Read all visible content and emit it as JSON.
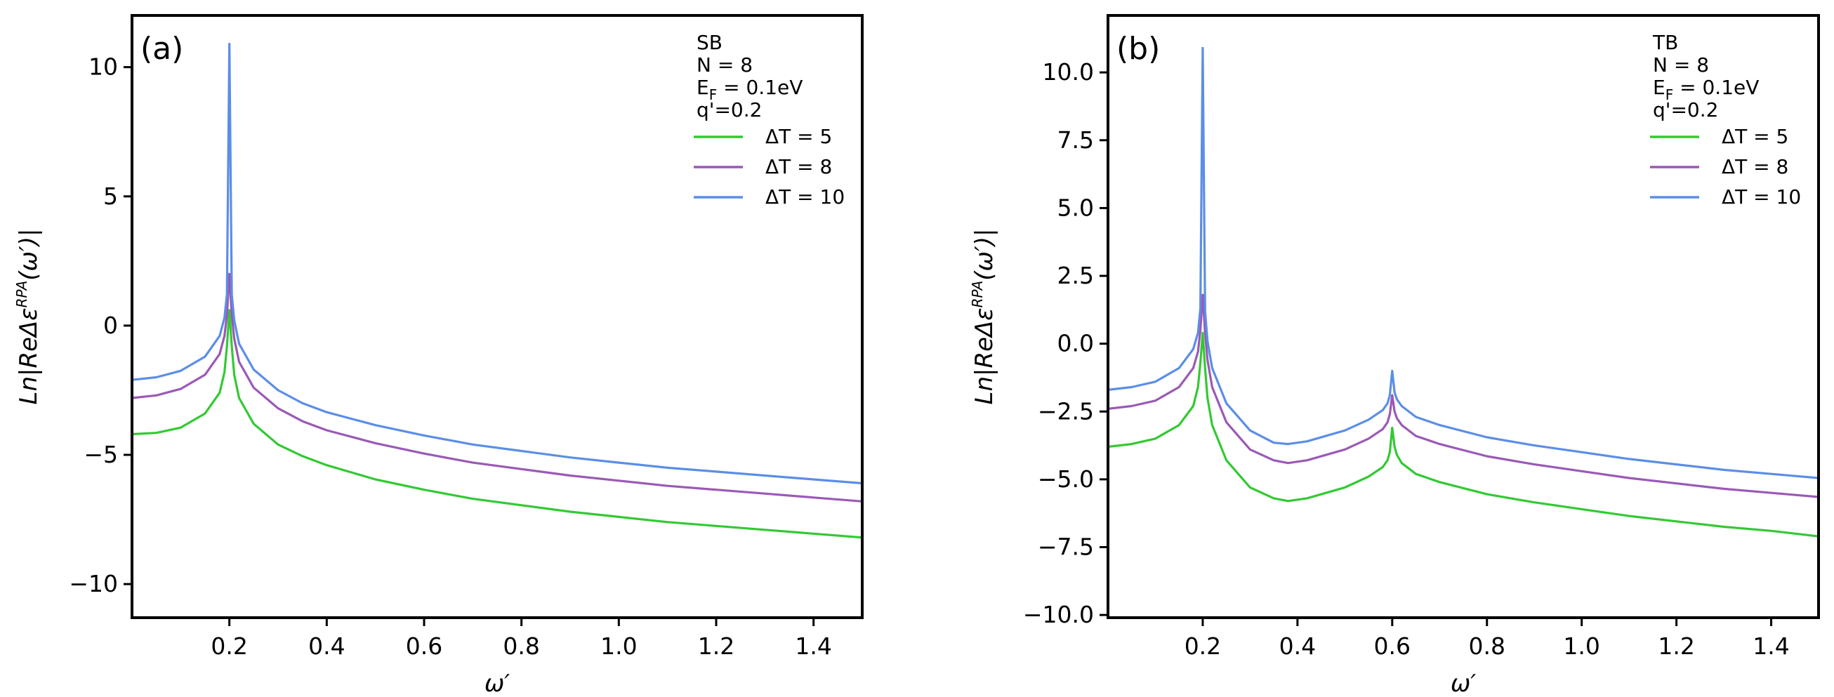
{
  "chart_data": [
    {
      "type": "line",
      "panel_label": "(a)",
      "xlabel": "ω′",
      "ylabel": "Ln|ReΔε^RPA(ω′)|",
      "xlim": [
        0.0,
        1.5
      ],
      "ylim": [
        -11.3,
        12
      ],
      "xticks": [
        0.2,
        0.4,
        0.6,
        0.8,
        1.0,
        1.2,
        1.4
      ],
      "xtick_labels": [
        "0.2",
        "0.4",
        "0.6",
        "0.8",
        "1.0",
        "1.2",
        "1.4"
      ],
      "yticks": [
        -10,
        -5,
        0,
        5,
        10
      ],
      "ytick_labels": [
        "−10",
        "−5",
        "0",
        "5",
        "10"
      ],
      "legend_title": [
        "SB",
        "N = 8",
        "E_F = 0.1eV",
        "q'=0.2"
      ],
      "legend_position": "top-right",
      "series": [
        {
          "name": "ΔT = 5",
          "color": "#33c933",
          "x": [
            0.0,
            0.05,
            0.1,
            0.15,
            0.18,
            0.19,
            0.195,
            0.2,
            0.205,
            0.21,
            0.22,
            0.25,
            0.3,
            0.35,
            0.4,
            0.5,
            0.6,
            0.7,
            0.8,
            0.9,
            1.0,
            1.1,
            1.2,
            1.3,
            1.4,
            1.5
          ],
          "y": [
            -4.2,
            -4.15,
            -3.95,
            -3.4,
            -2.6,
            -1.8,
            -0.8,
            0.6,
            -0.8,
            -1.9,
            -2.8,
            -3.8,
            -4.6,
            -5.05,
            -5.4,
            -5.95,
            -6.35,
            -6.7,
            -6.95,
            -7.2,
            -7.4,
            -7.6,
            -7.75,
            -7.9,
            -8.05,
            -8.2
          ]
        },
        {
          "name": "ΔT = 8",
          "color": "#9b59b6",
          "x": [
            0.0,
            0.05,
            0.1,
            0.15,
            0.18,
            0.19,
            0.195,
            0.2,
            0.205,
            0.21,
            0.22,
            0.25,
            0.3,
            0.35,
            0.4,
            0.5,
            0.6,
            0.7,
            0.8,
            0.9,
            1.0,
            1.1,
            1.2,
            1.3,
            1.4,
            1.5
          ],
          "y": [
            -2.8,
            -2.7,
            -2.45,
            -1.9,
            -1.1,
            -0.4,
            0.4,
            2.0,
            0.4,
            -0.5,
            -1.4,
            -2.4,
            -3.2,
            -3.7,
            -4.05,
            -4.55,
            -4.95,
            -5.3,
            -5.55,
            -5.8,
            -6.0,
            -6.2,
            -6.35,
            -6.5,
            -6.65,
            -6.8
          ]
        },
        {
          "name": "ΔT = 10",
          "color": "#5b8ee6",
          "x": [
            0.0,
            0.05,
            0.1,
            0.15,
            0.18,
            0.19,
            0.195,
            0.2,
            0.205,
            0.21,
            0.22,
            0.25,
            0.3,
            0.35,
            0.4,
            0.5,
            0.6,
            0.7,
            0.8,
            0.9,
            1.0,
            1.1,
            1.2,
            1.3,
            1.4,
            1.5
          ],
          "y": [
            -2.1,
            -2.0,
            -1.75,
            -1.2,
            -0.4,
            0.3,
            1.2,
            10.9,
            1.2,
            0.2,
            -0.7,
            -1.7,
            -2.5,
            -3.0,
            -3.35,
            -3.85,
            -4.25,
            -4.6,
            -4.85,
            -5.1,
            -5.3,
            -5.5,
            -5.65,
            -5.8,
            -5.95,
            -6.1
          ]
        }
      ]
    },
    {
      "type": "line",
      "panel_label": "(b)",
      "xlabel": "ω′",
      "ylabel": "Ln|ReΔε^RPA(ω′)|",
      "xlim": [
        0.0,
        1.5
      ],
      "ylim": [
        -10.1,
        12.1
      ],
      "xticks": [
        0.2,
        0.4,
        0.6,
        0.8,
        1.0,
        1.2,
        1.4
      ],
      "xtick_labels": [
        "0.2",
        "0.4",
        "0.6",
        "0.8",
        "1.0",
        "1.2",
        "1.4"
      ],
      "yticks": [
        -10,
        -7.5,
        -5,
        -2.5,
        0,
        2.5,
        5,
        7.5,
        10
      ],
      "ytick_labels": [
        "−10.0",
        "−7.5",
        "−5.0",
        "−2.5",
        "0.0",
        "2.5",
        "5.0",
        "7.5",
        "10.0"
      ],
      "legend_title": [
        "TB",
        "N = 8",
        "E_F = 0.1eV",
        "q'=0.2"
      ],
      "legend_position": "top-right",
      "series": [
        {
          "name": "ΔT = 5",
          "color": "#33c933",
          "x": [
            0.0,
            0.05,
            0.1,
            0.15,
            0.18,
            0.19,
            0.195,
            0.2,
            0.205,
            0.21,
            0.22,
            0.25,
            0.3,
            0.35,
            0.38,
            0.42,
            0.5,
            0.55,
            0.58,
            0.59,
            0.595,
            0.6,
            0.605,
            0.61,
            0.62,
            0.65,
            0.7,
            0.8,
            0.9,
            1.0,
            1.1,
            1.2,
            1.3,
            1.4,
            1.5
          ],
          "y": [
            -3.8,
            -3.7,
            -3.5,
            -3.0,
            -2.3,
            -1.6,
            -0.7,
            0.4,
            -0.9,
            -2.0,
            -3.0,
            -4.3,
            -5.3,
            -5.7,
            -5.8,
            -5.7,
            -5.3,
            -4.9,
            -4.55,
            -4.3,
            -4.0,
            -3.1,
            -3.8,
            -4.1,
            -4.4,
            -4.8,
            -5.1,
            -5.55,
            -5.85,
            -6.1,
            -6.35,
            -6.55,
            -6.75,
            -6.9,
            -7.1
          ]
        },
        {
          "name": "ΔT = 8",
          "color": "#9b59b6",
          "x": [
            0.0,
            0.05,
            0.1,
            0.15,
            0.18,
            0.19,
            0.195,
            0.2,
            0.205,
            0.21,
            0.22,
            0.25,
            0.3,
            0.35,
            0.38,
            0.42,
            0.5,
            0.55,
            0.58,
            0.59,
            0.595,
            0.6,
            0.605,
            0.61,
            0.62,
            0.65,
            0.7,
            0.8,
            0.9,
            1.0,
            1.1,
            1.2,
            1.3,
            1.4,
            1.5
          ],
          "y": [
            -2.4,
            -2.3,
            -2.1,
            -1.6,
            -0.9,
            -0.3,
            0.5,
            1.8,
            0.4,
            -0.6,
            -1.6,
            -2.9,
            -3.9,
            -4.3,
            -4.4,
            -4.3,
            -3.9,
            -3.5,
            -3.15,
            -2.9,
            -2.6,
            -1.9,
            -2.5,
            -2.75,
            -3.0,
            -3.4,
            -3.7,
            -4.15,
            -4.45,
            -4.7,
            -4.95,
            -5.15,
            -5.35,
            -5.5,
            -5.65
          ]
        },
        {
          "name": "ΔT = 10",
          "color": "#5b8ee6",
          "x": [
            0.0,
            0.05,
            0.1,
            0.15,
            0.18,
            0.19,
            0.195,
            0.2,
            0.205,
            0.21,
            0.22,
            0.25,
            0.3,
            0.35,
            0.38,
            0.42,
            0.5,
            0.55,
            0.58,
            0.59,
            0.595,
            0.6,
            0.605,
            0.61,
            0.62,
            0.65,
            0.7,
            0.8,
            0.9,
            1.0,
            1.1,
            1.2,
            1.3,
            1.4,
            1.5
          ],
          "y": [
            -1.7,
            -1.6,
            -1.4,
            -0.9,
            -0.2,
            0.4,
            1.3,
            10.9,
            1.2,
            0.1,
            -0.9,
            -2.2,
            -3.2,
            -3.65,
            -3.7,
            -3.6,
            -3.2,
            -2.8,
            -2.45,
            -2.2,
            -1.9,
            -1.0,
            -1.8,
            -2.05,
            -2.3,
            -2.7,
            -3.0,
            -3.45,
            -3.75,
            -4.0,
            -4.25,
            -4.45,
            -4.65,
            -4.8,
            -4.95
          ]
        }
      ]
    }
  ]
}
